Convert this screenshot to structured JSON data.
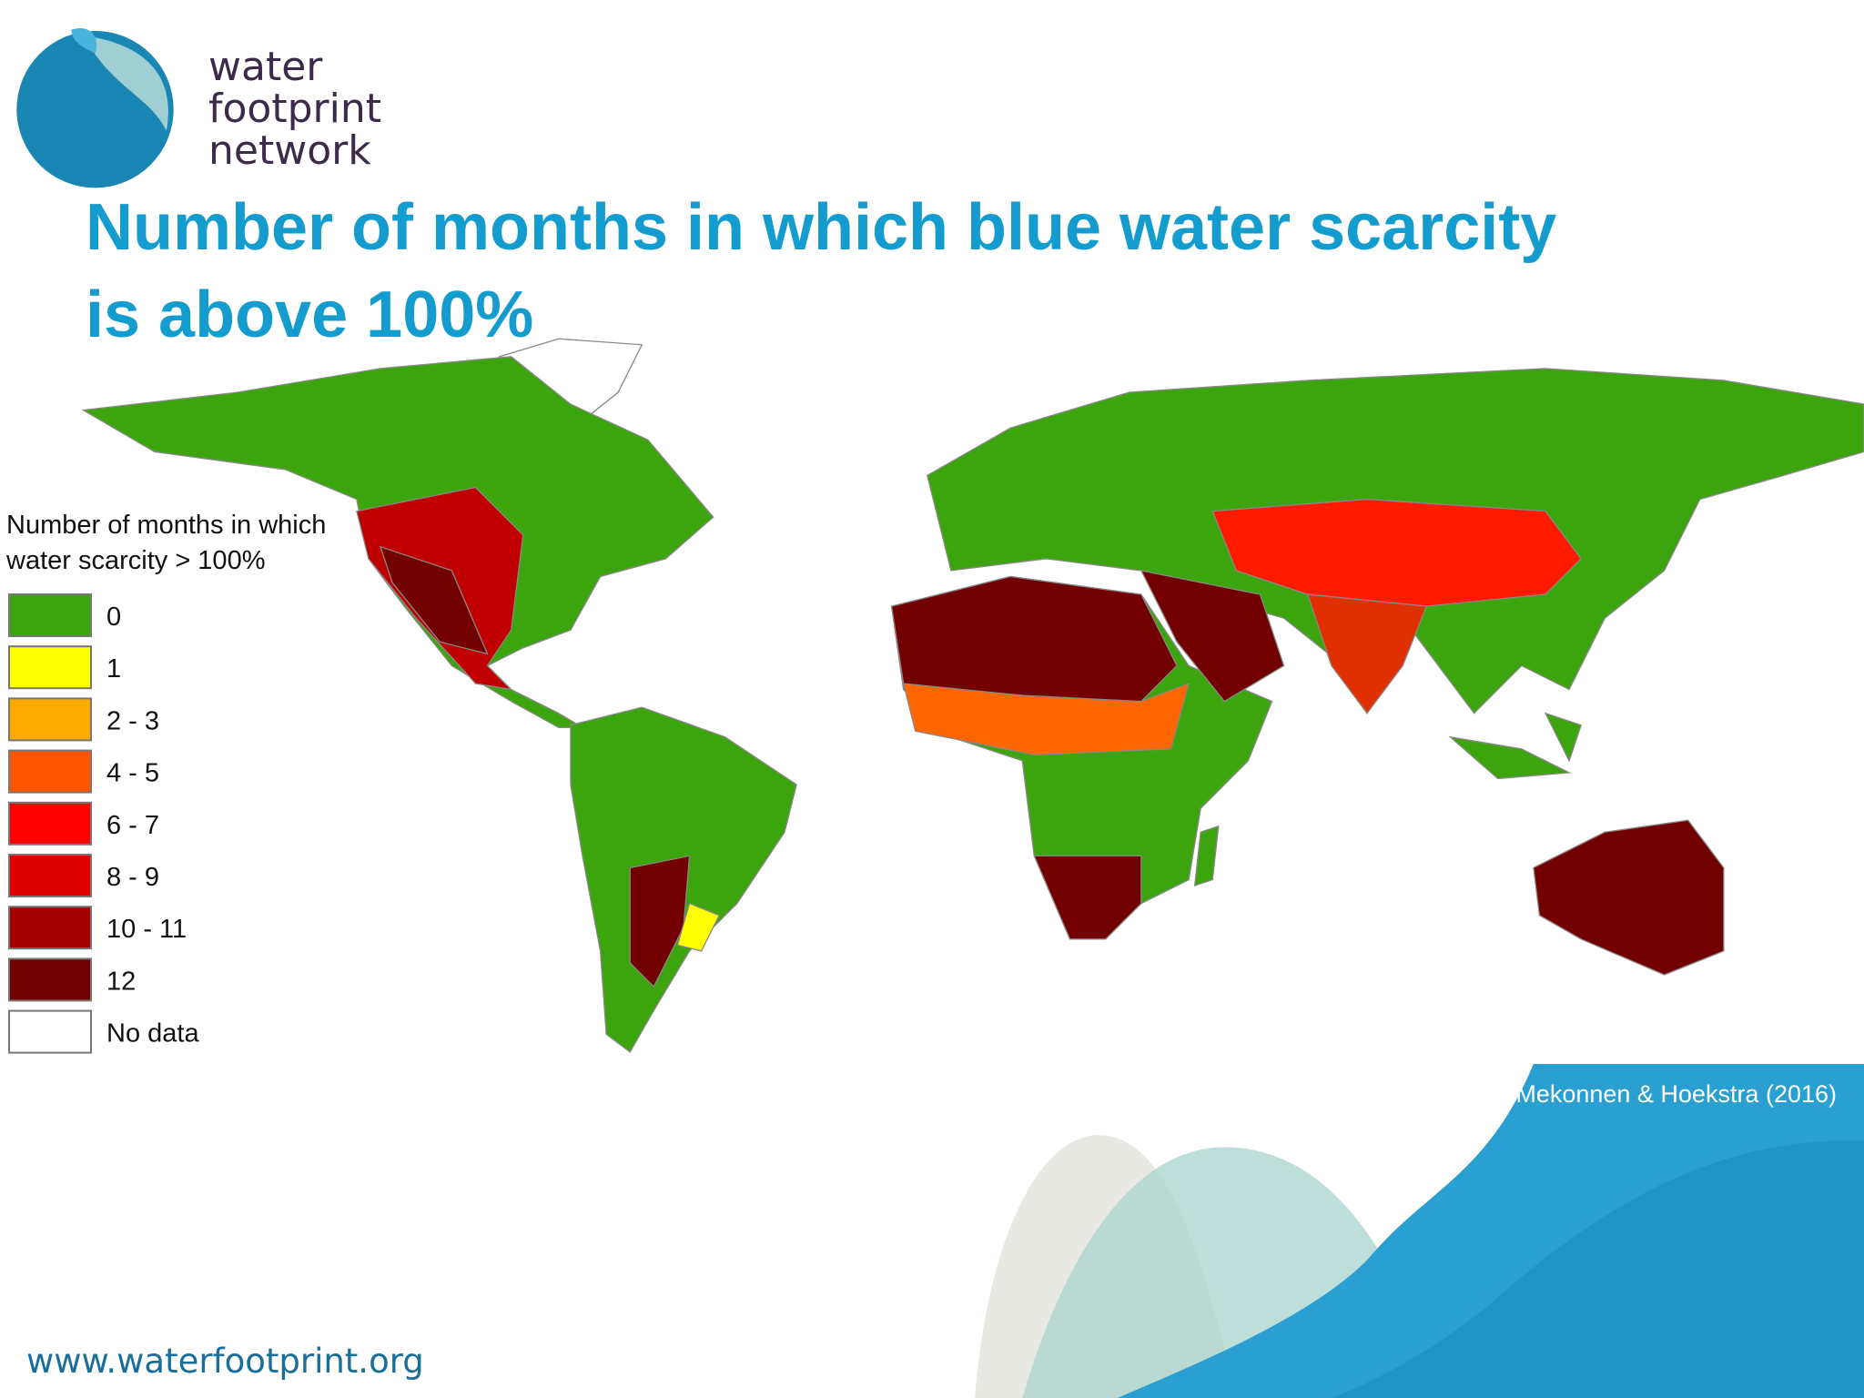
{
  "logo": {
    "lines": [
      "water",
      "footprint",
      "network"
    ]
  },
  "title_lines": [
    "Number of months in which blue water scarcity",
    "is above 100%"
  ],
  "legend": {
    "title_lines": [
      "Number of months in which",
      "water scarcity > 100%"
    ],
    "items": [
      {
        "label": "0",
        "color": "#3ca40c"
      },
      {
        "label": "1",
        "color": "#ffff00"
      },
      {
        "label": "2 - 3",
        "color": "#ffaa00"
      },
      {
        "label": "4 - 5",
        "color": "#ff5500"
      },
      {
        "label": "6 - 7",
        "color": "#ff0000"
      },
      {
        "label": "8 - 9",
        "color": "#e00000"
      },
      {
        "label": "10 - 11",
        "color": "#a80000"
      },
      {
        "label": "12",
        "color": "#730000"
      },
      {
        "label": "No data",
        "color": "#ffffff"
      }
    ]
  },
  "source": "Mekonnen & Hoekstra (2016)",
  "url": "www.waterfootprint.org"
}
